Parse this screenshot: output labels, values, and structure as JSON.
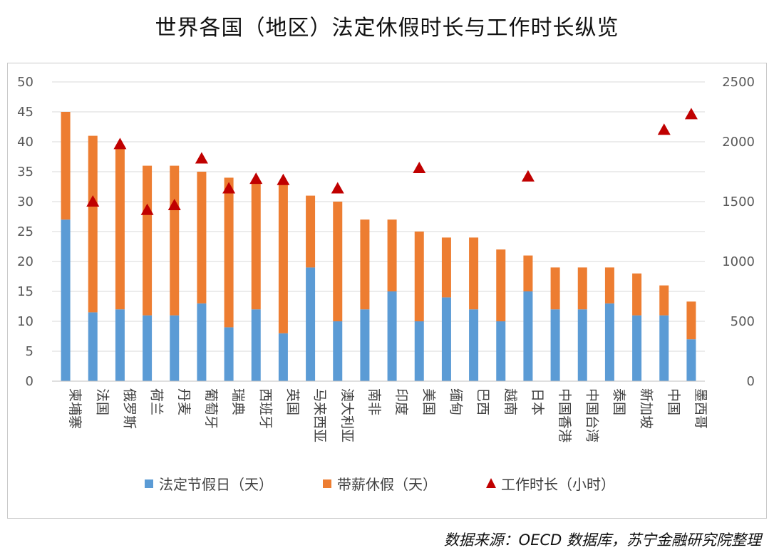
{
  "title": "世界各国（地区）法定休假时长与工作时长纵览",
  "source": "数据来源：OECD 数据库，苏宁金融研究院整理",
  "colors": {
    "holidays": "#5b9bd5",
    "paid_leave": "#ed7d31",
    "hours": "#c00000"
  },
  "chart_data": {
    "type": "bar",
    "stacked": true,
    "title": "世界各国（地区）法定休假时长与工作时长纵览",
    "categories": [
      "柬埔寨",
      "法国",
      "俄罗斯",
      "荷兰",
      "丹麦",
      "葡萄牙",
      "瑞典",
      "西班牙",
      "英国",
      "马来西亚",
      "澳大利亚",
      "南非",
      "印度",
      "美国",
      "缅甸",
      "巴西",
      "越南",
      "日本",
      "中国香港",
      "中国台湾",
      "泰国",
      "新加坡",
      "中国",
      "墨西哥"
    ],
    "series": [
      {
        "name": "法定节假日（天）",
        "axis": "left",
        "kind": "bar",
        "values": [
          27,
          11.5,
          12,
          11,
          11,
          13,
          9,
          12,
          8,
          19,
          10,
          12,
          15,
          10,
          14,
          12,
          10,
          15,
          12,
          12,
          13,
          11,
          11,
          7
        ]
      },
      {
        "name": "带薪休假（天）",
        "axis": "left",
        "kind": "bar",
        "values": [
          18,
          29.5,
          27,
          25,
          25,
          22,
          25,
          21,
          25,
          12,
          20,
          15,
          12,
          15,
          10,
          12,
          12,
          6,
          7,
          7,
          6,
          7,
          5,
          6.3
        ]
      },
      {
        "name": "工作时长（小时）",
        "axis": "right",
        "kind": "marker",
        "values": [
          null,
          1500,
          1980,
          1430,
          1470,
          1860,
          1610,
          1690,
          1680,
          null,
          1610,
          null,
          null,
          1780,
          null,
          null,
          null,
          1710,
          null,
          null,
          null,
          null,
          2100,
          2230
        ]
      }
    ],
    "y_left": {
      "min": 0,
      "max": 50,
      "step": 5,
      "ticks": [
        "0",
        "5",
        "10",
        "15",
        "20",
        "25",
        "30",
        "35",
        "40",
        "45",
        "50"
      ]
    },
    "y_right": {
      "min": 0,
      "max": 2500,
      "step": 500,
      "ticks": [
        "0",
        "500",
        "1000",
        "1500",
        "2000",
        "2500"
      ]
    },
    "legend": [
      "法定节假日（天）",
      "带薪休假（天）",
      "工作时长（小时）"
    ],
    "legend_position": "bottom",
    "grid": true
  }
}
